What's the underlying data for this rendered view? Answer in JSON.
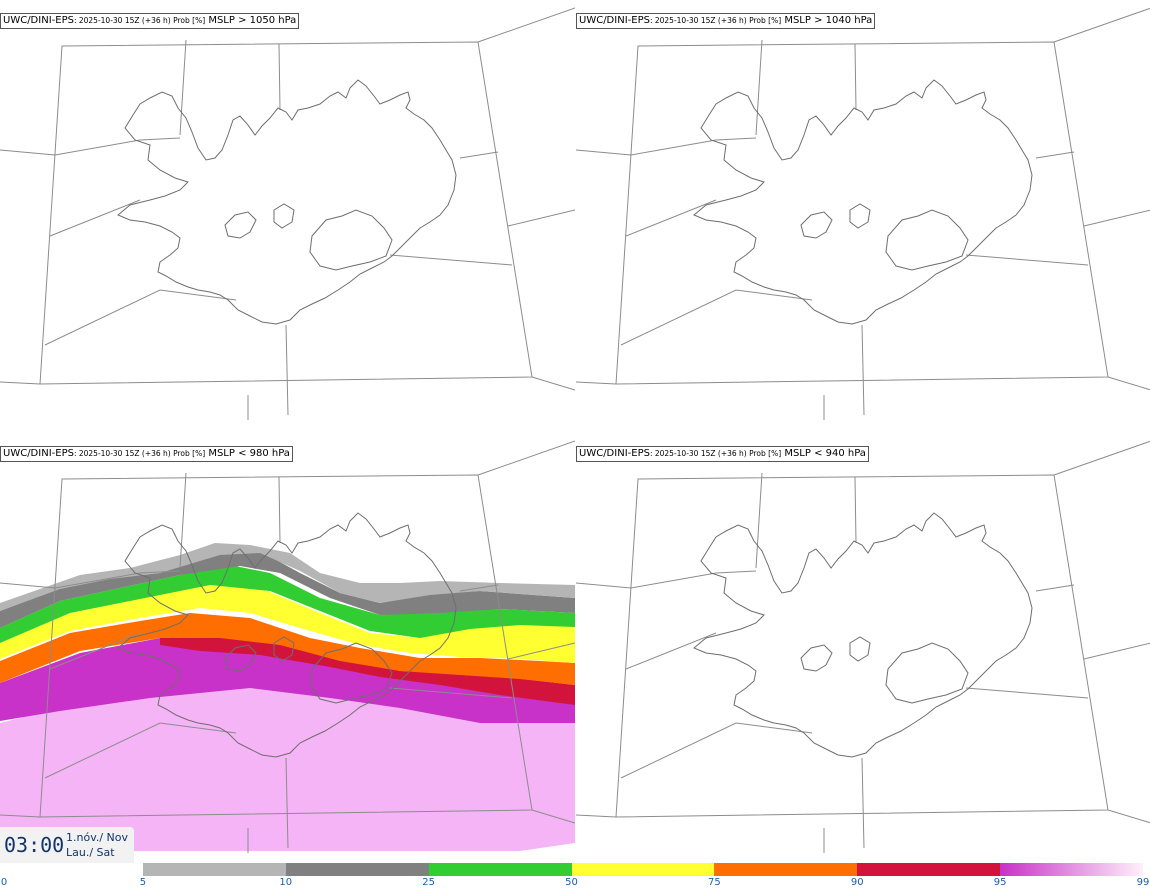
{
  "panels": [
    {
      "model": "UWC/DINI-EPS",
      "meta": ": 2025-10-30 15Z (+36 h) Prob [%]",
      "threshold": "MSLP > 1050 hPa"
    },
    {
      "model": "UWC/DINI-EPS",
      "meta": ": 2025-10-30 15Z (+36 h) Prob [%]",
      "threshold": "MSLP > 1040 hPa"
    },
    {
      "model": "UWC/DINI-EPS",
      "meta": ": 2025-10-30 15Z (+36 h) Prob [%]",
      "threshold": "MSLP < 980 hPa"
    },
    {
      "model": "UWC/DINI-EPS",
      "meta": ": 2025-10-30 15Z (+36 h) Prob [%]",
      "threshold": "MSLP < 940 hPa"
    }
  ],
  "valid_time": {
    "time": "03:00",
    "line1": "1.nóv./ Nov",
    "line2": "Lau./ Sat"
  },
  "colorbar": {
    "labels": [
      "0",
      "5",
      "10",
      "25",
      "50",
      "75",
      "90",
      "95",
      "99"
    ],
    "colors": [
      "#ffffff",
      "#b5b5b5",
      "#808080",
      "#32cd32",
      "#ffff32",
      "#ff6e00",
      "#d2143c",
      "#c832c8",
      "#f5b4f5"
    ]
  }
}
